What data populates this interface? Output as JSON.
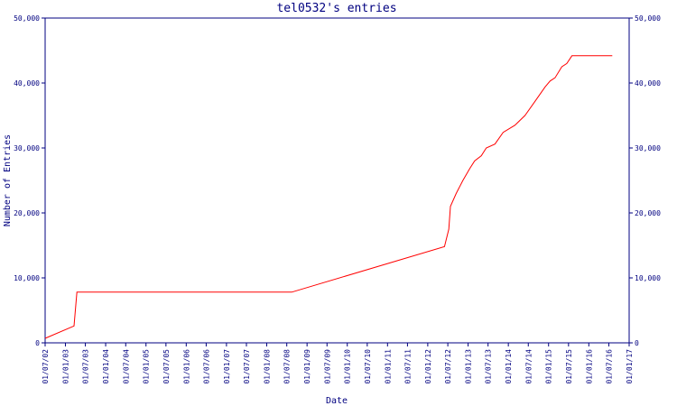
{
  "chart_data": {
    "type": "line",
    "title": "tel0532's entries",
    "xlabel": "Date",
    "ylabel": "Number of Entries",
    "ylim": [
      0,
      50000
    ],
    "y_ticks": [
      {
        "value": 0,
        "label": "0"
      },
      {
        "value": 10000,
        "label": "10,000"
      },
      {
        "value": 20000,
        "label": "20,000"
      },
      {
        "value": 30000,
        "label": "30,000"
      },
      {
        "value": 40000,
        "label": "40,000"
      },
      {
        "value": 50000,
        "label": "50,000"
      }
    ],
    "x_ticks": [
      "01/07/02",
      "01/01/03",
      "01/07/03",
      "01/01/04",
      "01/07/04",
      "01/01/05",
      "01/07/05",
      "01/01/06",
      "01/07/06",
      "01/01/07",
      "01/07/07",
      "01/01/08",
      "01/07/08",
      "01/01/09",
      "01/07/09",
      "01/01/10",
      "01/07/10",
      "01/01/11",
      "01/07/11",
      "01/01/12",
      "01/07/12",
      "01/01/13",
      "01/07/13",
      "01/01/14",
      "01/07/14",
      "01/01/15",
      "01/07/15",
      "01/01/16",
      "01/07/16",
      "01/01/17"
    ],
    "grid": false,
    "colors": {
      "axes": "#000080",
      "line": "#ff0000",
      "background": "#ffffff"
    },
    "series": [
      {
        "points": [
          {
            "x": "2002-07-01",
            "y": 700
          },
          {
            "x": "2003-03-20",
            "y": 2600
          },
          {
            "x": "2003-04-15",
            "y": 7800
          },
          {
            "x": "2008-08-15",
            "y": 7800
          },
          {
            "x": "2012-06-01",
            "y": 14800
          },
          {
            "x": "2012-07-10",
            "y": 17500
          },
          {
            "x": "2012-07-25",
            "y": 21000
          },
          {
            "x": "2012-09-15",
            "y": 23000
          },
          {
            "x": "2012-11-15",
            "y": 25000
          },
          {
            "x": "2013-01-15",
            "y": 26800
          },
          {
            "x": "2013-03-01",
            "y": 28000
          },
          {
            "x": "2013-05-01",
            "y": 28800
          },
          {
            "x": "2013-06-15",
            "y": 30000
          },
          {
            "x": "2013-09-01",
            "y": 30600
          },
          {
            "x": "2013-11-15",
            "y": 32400
          },
          {
            "x": "2014-03-01",
            "y": 33500
          },
          {
            "x": "2014-06-01",
            "y": 35000
          },
          {
            "x": "2014-09-01",
            "y": 37200
          },
          {
            "x": "2014-12-01",
            "y": 39400
          },
          {
            "x": "2015-01-15",
            "y": 40300
          },
          {
            "x": "2015-03-01",
            "y": 40800
          },
          {
            "x": "2015-05-01",
            "y": 42500
          },
          {
            "x": "2015-06-15",
            "y": 43000
          },
          {
            "x": "2015-08-01",
            "y": 44200
          },
          {
            "x": "2016-08-01",
            "y": 44200
          }
        ]
      }
    ]
  }
}
